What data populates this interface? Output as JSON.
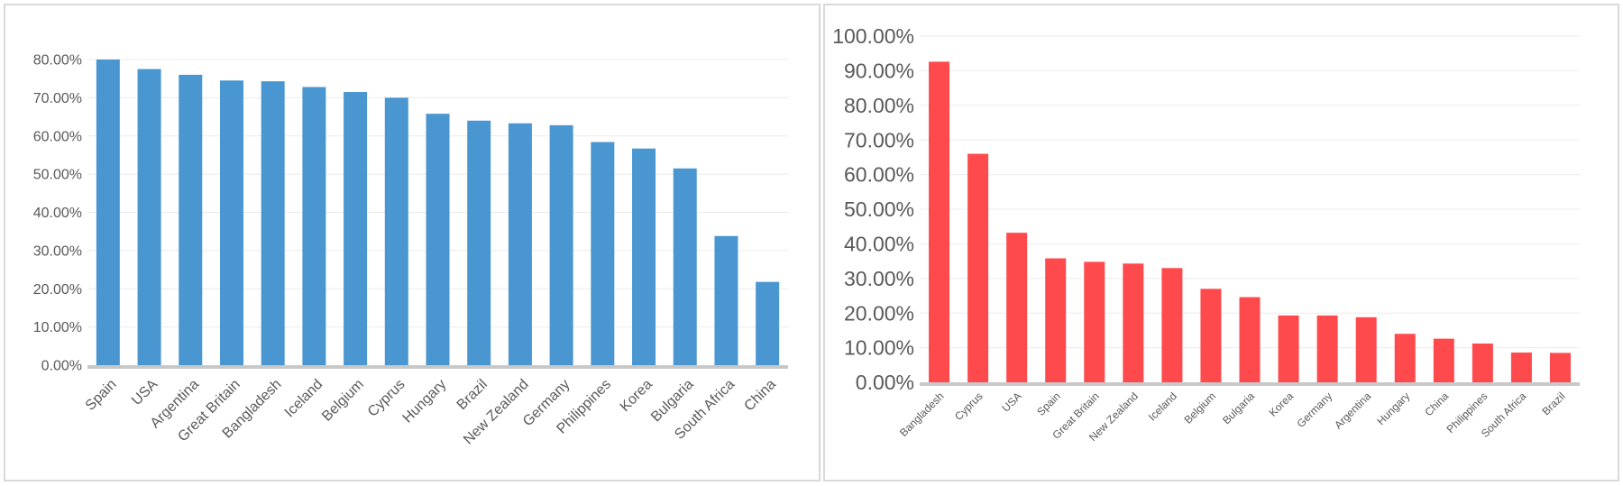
{
  "chart_data": [
    {
      "type": "bar",
      "title": "",
      "xlabel": "",
      "ylabel": "",
      "color": "#4a96d0",
      "ylim": [
        0,
        0.8
      ],
      "yticks": [
        0,
        0.1,
        0.2,
        0.3,
        0.4,
        0.5,
        0.6,
        0.7,
        0.8
      ],
      "ytick_labels": [
        "0.00%",
        "10.00%",
        "20.00%",
        "30.00%",
        "40.00%",
        "50.00%",
        "60.00%",
        "70.00%",
        "80.00%"
      ],
      "grid": true,
      "categories": [
        "Spain",
        "USA",
        "Argentina",
        "Great Britain",
        "Bangladesh",
        "Iceland",
        "Belgium",
        "Cyprus",
        "Hungary",
        "Brazil",
        "New Zealand",
        "Germany",
        "Philippines",
        "Korea",
        "Bulgaria",
        "South Africa",
        "China"
      ],
      "values": [
        0.8,
        0.775,
        0.76,
        0.745,
        0.743,
        0.728,
        0.715,
        0.7,
        0.658,
        0.64,
        0.633,
        0.628,
        0.584,
        0.567,
        0.515,
        0.338,
        0.218
      ]
    },
    {
      "type": "bar",
      "title": "",
      "xlabel": "",
      "ylabel": "",
      "color": "#ff4a4d",
      "ylim": [
        0,
        1.0
      ],
      "yticks": [
        0,
        0.1,
        0.2,
        0.3,
        0.4,
        0.5,
        0.6,
        0.7,
        0.8,
        0.9,
        1.0
      ],
      "ytick_labels": [
        "0.00%",
        "10.00%",
        "20.00%",
        "30.00%",
        "40.00%",
        "50.00%",
        "60.00%",
        "70.00%",
        "80.00%",
        "90.00%",
        "100.00%"
      ],
      "grid": true,
      "categories": [
        "Bangladesh",
        "Cyprus",
        "USA",
        "Spain",
        "Great Britain",
        "New Zealand",
        "Iceland",
        "Belgium",
        "Bulgaria",
        "Korea",
        "Germany",
        "Argentina",
        "Hungary",
        "China",
        "Philippines",
        "South Africa",
        "Brazil"
      ],
      "values": [
        0.926,
        0.66,
        0.432,
        0.358,
        0.348,
        0.343,
        0.33,
        0.27,
        0.246,
        0.193,
        0.193,
        0.188,
        0.14,
        0.126,
        0.112,
        0.086,
        0.085
      ]
    }
  ]
}
